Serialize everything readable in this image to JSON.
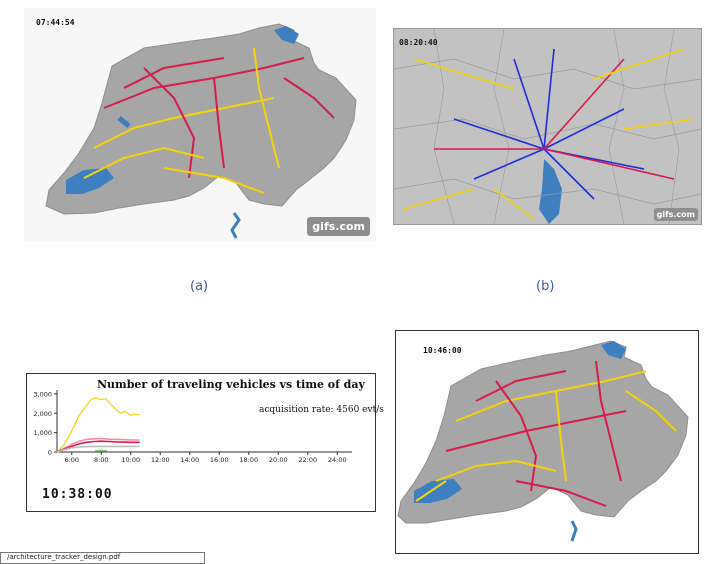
{
  "panels": {
    "a": {
      "timestamp": "07:44:54",
      "watermark": "gifs.com",
      "caption": "(a)"
    },
    "b": {
      "timestamp": "08:20:40",
      "watermark": "gifs.com",
      "caption": "(b)"
    },
    "c": {
      "clock": "10:38:00",
      "acquisition_rate": "acquisition rate: 4560 evt/s"
    },
    "d": {
      "timestamp": "10:46:00"
    }
  },
  "bottom_tag": "/architecture_tracker_design.pdf",
  "colors": {
    "lake": "#3e7fbf",
    "land": "#a6a6a6",
    "yellow_series": "#f4d20a",
    "pink_series": "#f28cab",
    "red_series": "#d81b4d",
    "blue_series": "#1d2fd8",
    "grey_series": "#bcbcbc",
    "green_series": "#7fd17f"
  },
  "chart_data": {
    "type": "line",
    "title": "Number of traveling vehicles vs time of day",
    "xlabel": "",
    "ylabel": "",
    "x_ticks": [
      "6:00",
      "8:00",
      "10:00",
      "12:00",
      "14:00",
      "16:00",
      "18:00",
      "20:00",
      "22:00",
      "24:00"
    ],
    "y_ticks": [
      "0",
      "1,000",
      "2,000",
      "3,000"
    ],
    "xlim": [
      5,
      25
    ],
    "ylim": [
      0,
      3200
    ],
    "grid": false,
    "series": [
      {
        "color": "#f4d20a",
        "x": [
          5.0,
          5.5,
          6.0,
          6.5,
          7.0,
          7.3,
          7.6,
          8.0,
          8.3,
          8.6,
          9.0,
          9.3,
          9.6,
          10.0,
          10.3,
          10.6
        ],
        "values": [
          0,
          400,
          1100,
          1900,
          2400,
          2700,
          2800,
          2700,
          2750,
          2500,
          2200,
          2000,
          2100,
          1900,
          1950,
          1900
        ]
      },
      {
        "color": "#f28cab",
        "x": [
          5.0,
          5.5,
          6.0,
          6.5,
          7.0,
          7.5,
          8.0,
          8.5,
          9.0,
          9.5,
          10.0,
          10.6
        ],
        "values": [
          0,
          200,
          400,
          550,
          650,
          680,
          700,
          660,
          650,
          640,
          620,
          620
        ]
      },
      {
        "color": "#d81b4d",
        "x": [
          5.0,
          5.5,
          6.0,
          6.5,
          7.0,
          7.5,
          8.0,
          8.5,
          9.0,
          9.5,
          10.0,
          10.6
        ],
        "values": [
          0,
          150,
          300,
          420,
          500,
          540,
          560,
          540,
          520,
          510,
          500,
          500
        ]
      },
      {
        "color": "#bcbcbc",
        "x": [
          5.0,
          5.5,
          6.0,
          6.5,
          7.0,
          8.0,
          9.0,
          10.0,
          10.6
        ],
        "values": [
          0,
          120,
          220,
          260,
          280,
          290,
          290,
          290,
          290
        ]
      },
      {
        "color": "#7fd17f",
        "x": [
          7.6,
          8.0,
          8.4
        ],
        "values": [
          60,
          70,
          60
        ]
      }
    ]
  }
}
